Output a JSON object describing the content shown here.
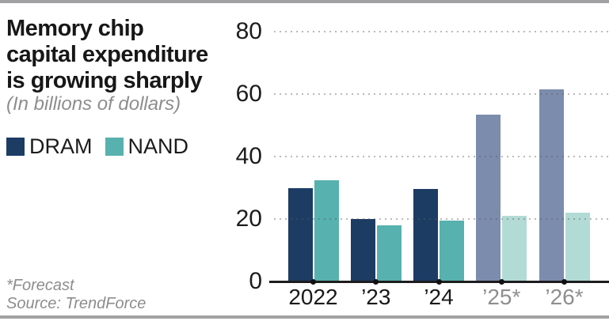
{
  "header": {
    "title_lines": [
      "Memory chip",
      "capital expenditure",
      "is growing sharply"
    ],
    "subtitle": "(In billions of dollars)"
  },
  "footnote": {
    "line1": "*Forecast",
    "line2": "Source: TrendForce"
  },
  "colors": {
    "dram": "#1d3c64",
    "dram_forecast": "#7b8cad",
    "nand": "#57b1ae",
    "nand_forecast": "#b2dbd5",
    "border": "#a1a1a3",
    "xtick_actual": "#1a1a1a",
    "xtick_forecast": "#8f8f8f"
  },
  "chart_data": {
    "type": "bar",
    "title": "Memory chip capital expenditure is growing sharply",
    "unit_note": "In billions of dollars",
    "categories": [
      "2022",
      "’23",
      "’24",
      "’25*",
      "’26*"
    ],
    "series": [
      {
        "name": "DRAM",
        "values": [
          30,
          20,
          29.5,
          53.5,
          61.5
        ],
        "color": "#1d3c64",
        "forecast_color": "#7b8cad"
      },
      {
        "name": "NAND",
        "values": [
          32.5,
          18,
          19.5,
          21,
          22
        ],
        "color": "#57b1ae",
        "forecast_color": "#b2dbd5"
      }
    ],
    "forecast_from_index": 3,
    "ylim": [
      0,
      80
    ],
    "yticks": [
      0,
      20,
      40,
      60,
      80
    ],
    "grid": "dotted-horizontal",
    "legend_position": "top-left",
    "source": "TrendForce"
  }
}
